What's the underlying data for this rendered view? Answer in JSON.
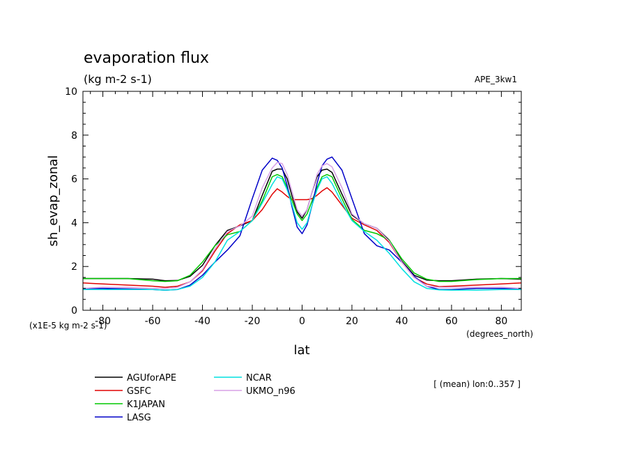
{
  "header": {
    "title": "evaporation flux",
    "units": "(kg m-2 s-1)",
    "experiment": "APE_3kw1"
  },
  "footer": {
    "scale_note": "(x1E-5 kg m-2 s-1)",
    "x_units": "(degrees_north)",
    "mean_note": "[ (mean) lon:0..357 ]"
  },
  "chart_data": {
    "type": "line",
    "title": "evaporation flux",
    "xlabel": "lat",
    "ylabel": "sh_evap_zonal",
    "xlim": [
      -88,
      88
    ],
    "ylim": [
      0,
      10
    ],
    "xticks": [
      -80,
      -60,
      -40,
      -20,
      0,
      20,
      40,
      60,
      80
    ],
    "yticks": [
      0,
      2,
      4,
      6,
      8,
      10
    ],
    "xtick_labels": [
      "-80",
      "-60",
      "-40",
      "-20",
      "0",
      "20",
      "40",
      "60",
      "80"
    ],
    "ytick_labels": [
      "0",
      "2",
      "4",
      "6",
      "8",
      "10"
    ],
    "grid": false,
    "legend_position": "bottom-left",
    "x": [
      -88,
      -80,
      -70,
      -60,
      -55,
      -50,
      -45,
      -40,
      -35,
      -30,
      -25,
      -20,
      -16,
      -12,
      -10,
      -8,
      -6,
      -4,
      -2,
      0,
      2,
      4,
      6,
      8,
      10,
      12,
      16,
      20,
      25,
      30,
      35,
      40,
      45,
      50,
      55,
      60,
      70,
      80,
      88
    ],
    "series": [
      {
        "name": "AGUforAPE",
        "color": "#000000",
        "values": [
          1.45,
          1.45,
          1.45,
          1.42,
          1.35,
          1.36,
          1.55,
          2.05,
          2.95,
          3.65,
          3.85,
          4.1,
          5.25,
          6.35,
          6.45,
          6.45,
          6.0,
          5.2,
          4.5,
          4.2,
          4.6,
          5.4,
          6.1,
          6.4,
          6.45,
          6.3,
          5.3,
          4.35,
          3.95,
          3.75,
          3.2,
          2.25,
          1.6,
          1.38,
          1.35,
          1.35,
          1.42,
          1.45,
          1.42
        ]
      },
      {
        "name": "GSFC",
        "color": "#e00000",
        "values": [
          1.25,
          1.2,
          1.15,
          1.1,
          1.05,
          1.1,
          1.3,
          1.8,
          2.7,
          3.5,
          3.9,
          4.1,
          4.6,
          5.3,
          5.55,
          5.4,
          5.2,
          5.05,
          5.05,
          5.05,
          5.05,
          5.1,
          5.25,
          5.45,
          5.6,
          5.4,
          4.8,
          4.2,
          3.9,
          3.65,
          3.1,
          2.2,
          1.5,
          1.2,
          1.08,
          1.1,
          1.15,
          1.2,
          1.25
        ]
      },
      {
        "name": "K1JAPAN",
        "color": "#00c800",
        "values": [
          1.45,
          1.45,
          1.45,
          1.35,
          1.32,
          1.35,
          1.6,
          2.2,
          2.95,
          3.45,
          3.6,
          4.1,
          5.0,
          6.1,
          6.2,
          6.1,
          5.6,
          5.0,
          4.4,
          4.1,
          4.4,
          5.0,
          5.6,
          6.1,
          6.2,
          6.1,
          5.1,
          4.15,
          3.65,
          3.5,
          3.2,
          2.35,
          1.7,
          1.42,
          1.32,
          1.32,
          1.4,
          1.45,
          1.45
        ]
      },
      {
        "name": "LASG",
        "color": "#0000c8",
        "values": [
          1.0,
          1.0,
          0.98,
          0.95,
          0.92,
          0.95,
          1.15,
          1.6,
          2.2,
          2.75,
          3.4,
          5.1,
          6.4,
          6.95,
          6.85,
          6.5,
          5.7,
          4.7,
          3.8,
          3.5,
          3.9,
          4.8,
          5.8,
          6.6,
          6.9,
          7.0,
          6.4,
          5.1,
          3.5,
          2.95,
          2.75,
          2.2,
          1.55,
          1.1,
          0.95,
          0.95,
          1.0,
          1.0,
          1.0
        ]
      },
      {
        "name": "NCAR",
        "color": "#00e0e0",
        "values": [
          0.95,
          0.95,
          0.95,
          0.95,
          0.92,
          0.95,
          1.1,
          1.5,
          2.2,
          3.2,
          3.6,
          4.1,
          4.9,
          5.75,
          6.1,
          6.0,
          5.5,
          4.8,
          4.0,
          3.7,
          4.0,
          4.8,
          5.5,
          6.0,
          6.1,
          5.8,
          4.9,
          4.1,
          3.6,
          3.2,
          2.6,
          1.9,
          1.3,
          1.0,
          0.93,
          0.92,
          0.92,
          0.95,
          0.95
        ]
      },
      {
        "name": "UKMO_n96",
        "color": "#d7a0e6",
        "values": [
          1.0,
          1.05,
          1.05,
          1.0,
          1.0,
          1.05,
          1.3,
          1.85,
          2.8,
          3.6,
          3.85,
          4.3,
          5.6,
          6.5,
          6.75,
          6.7,
          6.2,
          5.4,
          4.6,
          4.3,
          4.6,
          5.4,
          6.2,
          6.6,
          6.7,
          6.55,
          5.6,
          4.4,
          3.95,
          3.75,
          3.15,
          2.2,
          1.5,
          1.1,
          1.05,
          1.05,
          1.05,
          1.05,
          1.0
        ]
      }
    ]
  }
}
